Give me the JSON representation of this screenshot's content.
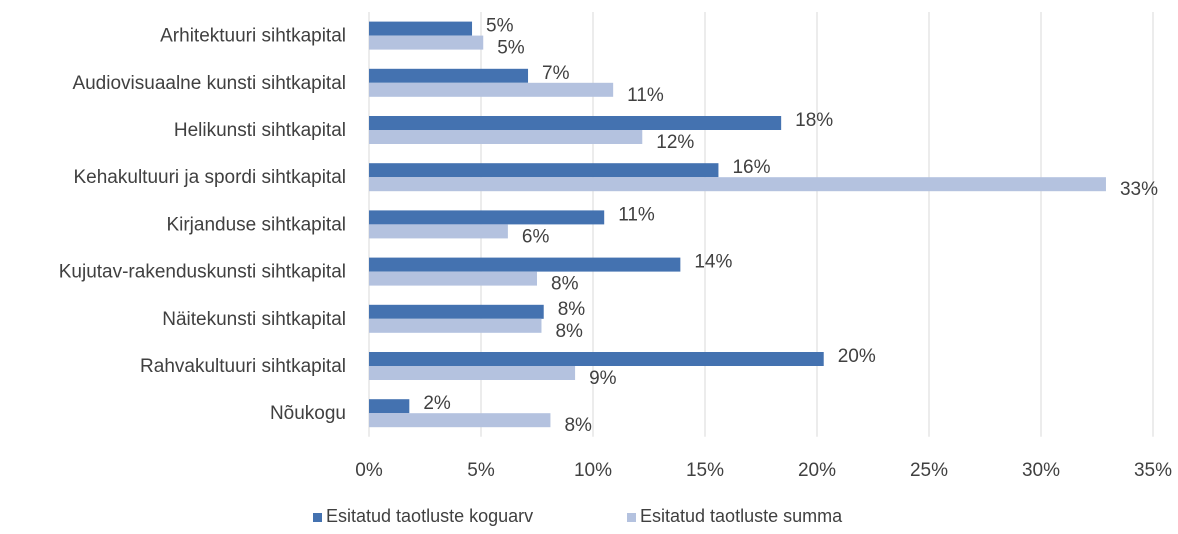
{
  "chart_data": {
    "type": "bar",
    "orientation": "horizontal",
    "title": "",
    "xlabel": "",
    "ylabel": "",
    "categories": [
      "Arhitektuuri sihtkapital",
      "Audiovisuaalne kunsti sihtkapital",
      "Helikunsti sihtkapital",
      "Kehakultuuri  ja spordi sihtkapital",
      "Kirjanduse sihtkapital",
      "Kujutav-rakenduskunsti sihtkapital",
      "Näitekunsti sihtkapital",
      "Rahvakultuuri sihtkapital",
      "Nõukogu"
    ],
    "series": [
      {
        "name": "Esitatud taotluste koguarv",
        "color": "#4472B0",
        "values": [
          5,
          7,
          18,
          16,
          11,
          14,
          8,
          20,
          2
        ],
        "bar_values": [
          4.6,
          7.1,
          18.4,
          15.6,
          10.5,
          13.9,
          7.8,
          20.3,
          1.8
        ],
        "labels": [
          "5%",
          "7%",
          "18%",
          "16%",
          "11%",
          "14%",
          "8%",
          "20%",
          "2%"
        ]
      },
      {
        "name": "Esitatud taotluste summa",
        "color": "#B4C2DF",
        "values": [
          5,
          11,
          12,
          33,
          6,
          8,
          8,
          9,
          8
        ],
        "bar_values": [
          5.1,
          10.9,
          12.2,
          32.9,
          6.2,
          7.5,
          7.7,
          9.2,
          8.1
        ],
        "labels": [
          "5%",
          "11%",
          "12%",
          "33%",
          "6%",
          "8%",
          "8%",
          "9%",
          "8%"
        ]
      }
    ],
    "xlim": [
      0,
      35
    ],
    "x_ticks": [
      "0%",
      "5%",
      "10%",
      "15%",
      "20%",
      "25%",
      "30%",
      "35%"
    ],
    "grid": true,
    "legend_position": "bottom"
  }
}
